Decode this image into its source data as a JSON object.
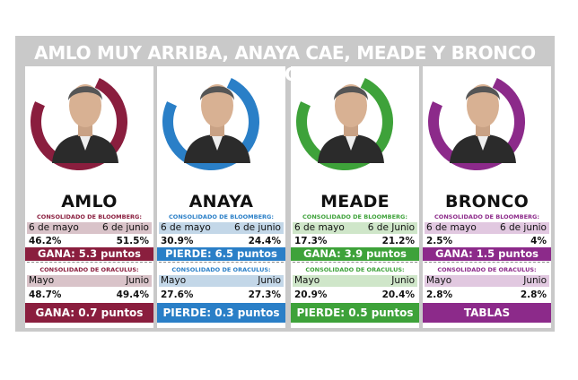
{
  "title": "AMLO MUY ARRIBA, ANAYA CAE, MEADE Y BRONCO CRECEN",
  "candidates": [
    {
      "name": "AMLO",
      "color": "#8a1e3e",
      "tint": "#d9c3c9",
      "bloomberg_label": "CONSOLIDADO DE BLOOMBERG:",
      "b_date1": "6 de mayo",
      "b_date2": "6 de junio",
      "b_val1": "46.2%",
      "b_val2": "51.5%",
      "b_result": "GANA: 5.3 puntos",
      "oraculus_label": "CONSOLIDADO DE ORACULUS:",
      "o_month1": "Mayo",
      "o_month2": "Junio",
      "o_val1": "48.7%",
      "o_val2": "49.4%",
      "o_result": "GANA: 0.7 puntos",
      "o_color": "#8a1e3e"
    },
    {
      "name": "ANAYA",
      "color": "#2a7fc7",
      "tint": "#c3d7e8",
      "bloomberg_label": "CONSOLIDADO DE BLOOMBERG:",
      "b_date1": "6 de mayo",
      "b_date2": "6 de junio",
      "b_val1": "30.9%",
      "b_val2": "24.4%",
      "b_result": "PIERDE: 6.5 puntos",
      "oraculus_label": "CONSOLIDADO DE ORACULUS:",
      "o_month1": "Mayo",
      "o_month2": "Junio",
      "o_val1": "27.6%",
      "o_val2": "27.3%",
      "o_result": "PIERDE: 0.3 puntos",
      "o_color": "#2a7fc7"
    },
    {
      "name": "MEADE",
      "color": "#3ea23a",
      "tint": "#cfe6c9",
      "bloomberg_label": "CONSOLIDADO DE BLOOMBERG:",
      "b_date1": "6 de mayo",
      "b_date2": "6 de Junio",
      "b_val1": "17.3%",
      "b_val2": "21.2%",
      "b_result": "GANA: 3.9 puntos",
      "oraculus_label": "CONSOLIDADO DE ORACULUS:",
      "o_month1": "Mayo",
      "o_month2": "Junio",
      "o_val1": "20.9%",
      "o_val2": "20.4%",
      "o_result": "PIERDE: 0.5 puntos",
      "o_color": "#3ea23a"
    },
    {
      "name": "BRONCO",
      "color": "#8c2a8a",
      "tint": "#e1c8e0",
      "bloomberg_label": "CONSOLIDADO DE BLOOMBERG:",
      "b_date1": "6 de mayo",
      "b_date2": "6 de junio",
      "b_val1": "2.5%",
      "b_val2": "4%",
      "b_result": "GANA: 1.5 puntos",
      "oraculus_label": "CONSOLIDADO DE ORACULUS:",
      "o_month1": "Mayo",
      "o_month2": "Junio",
      "o_val1": "2.8%",
      "o_val2": "2.8%",
      "o_result": "TABLAS",
      "o_color": "#8c2a8a"
    }
  ]
}
